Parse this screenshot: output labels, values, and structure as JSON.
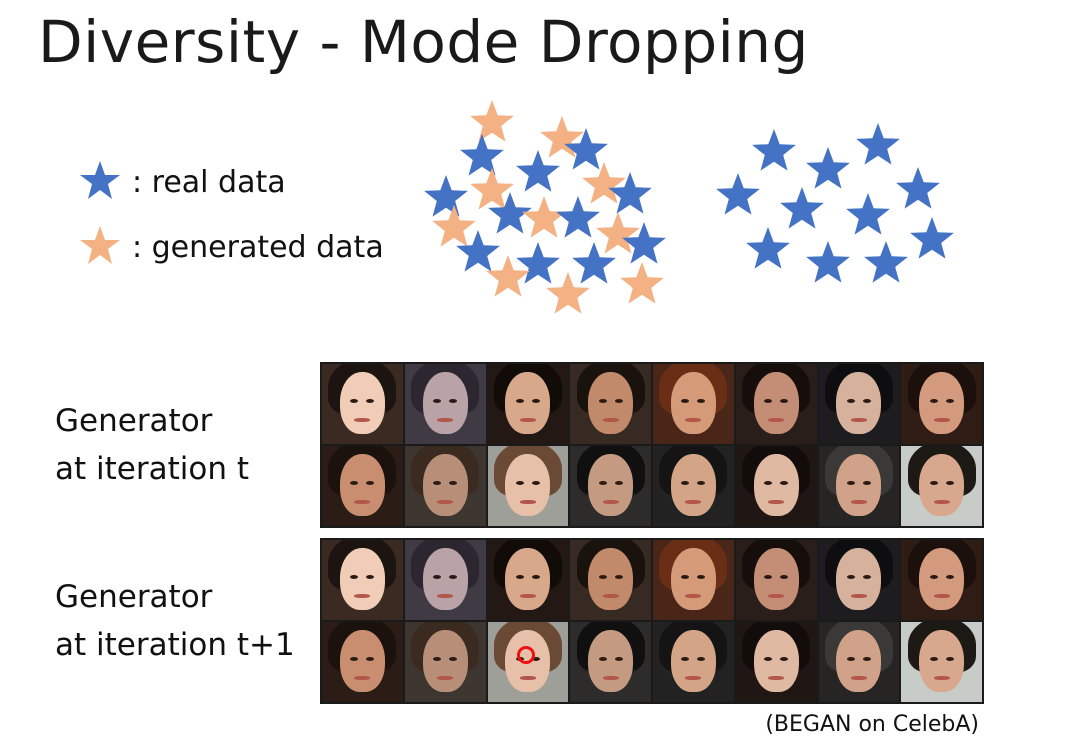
{
  "slide": {
    "title": "Diversity - Mode Dropping",
    "legend": [
      {
        "label": ": real data",
        "icon": "blue-star-icon",
        "color": "#4472c4"
      },
      {
        "label": ": generated data",
        "icon": "orange-star-icon",
        "color": "#f4b183"
      }
    ],
    "generator_t": {
      "line1": "Generator",
      "line2": "at iteration t"
    },
    "generator_t1": {
      "line1": "Generator",
      "line2": "at iteration t+1"
    },
    "caption": "(BEGAN on CelebA)"
  },
  "colors": {
    "real": "#4472c4",
    "generated": "#f4b183",
    "grid_border": "#1a1a1a"
  }
}
